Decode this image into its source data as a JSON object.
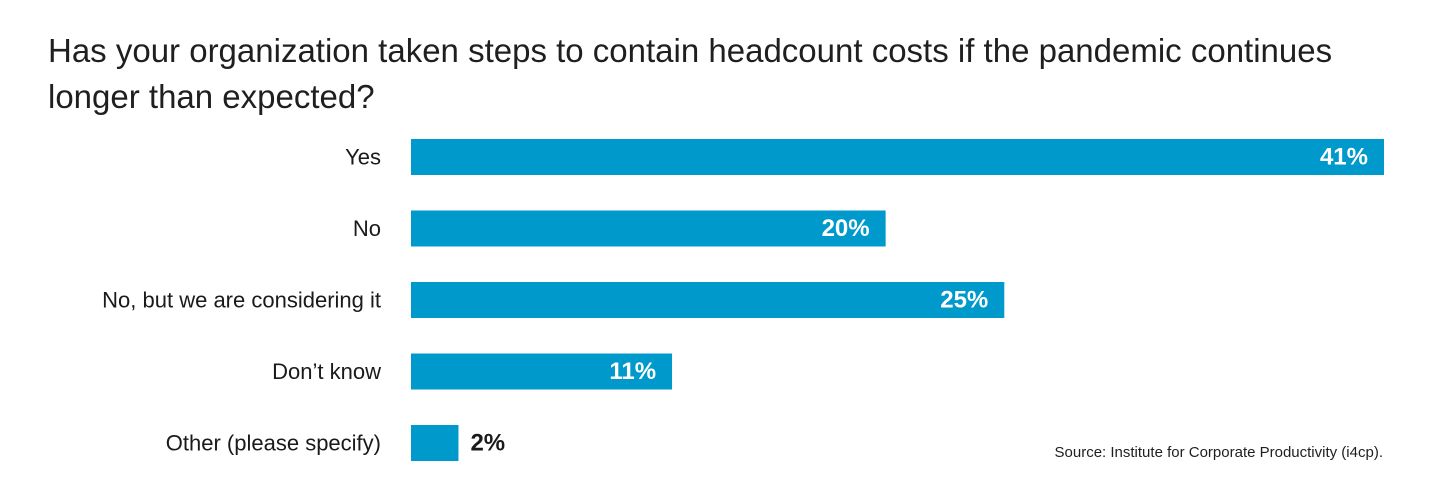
{
  "chart_data": {
    "type": "bar",
    "orientation": "horizontal",
    "title": "Has your organization taken steps to contain headcount costs if the pandemic continues longer than expected?",
    "categories": [
      "Yes",
      "No",
      "No, but we are considering it",
      "Don’t know",
      "Other (please specify)"
    ],
    "values": [
      41,
      20,
      25,
      11,
      2
    ],
    "value_labels": [
      "41%",
      "20%",
      "25%",
      "11%",
      "2%"
    ],
    "unit": "%",
    "xlim": [
      0,
      41
    ],
    "grid": false,
    "legend": "none",
    "bar_color": "#0099cc",
    "label_color_inside": "#ffffff",
    "label_color_outside": "#1a1a1a"
  },
  "source": "Source: Institute for Corporate Productivity (i4cp)."
}
